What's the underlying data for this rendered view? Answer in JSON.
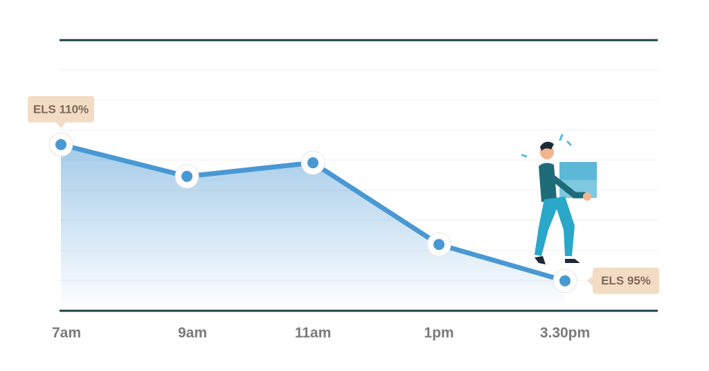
{
  "chart_data": {
    "type": "line",
    "categories": [
      "7am",
      "9am",
      "11am",
      "1pm",
      "3.30pm"
    ],
    "values": [
      110,
      106.5,
      108,
      99,
      95
    ],
    "value_labels": [
      "ELS 110%",
      null,
      null,
      null,
      "ELS 95%"
    ],
    "color": "#4a98d3",
    "ylim": [
      91.7,
      121.5
    ]
  }
}
